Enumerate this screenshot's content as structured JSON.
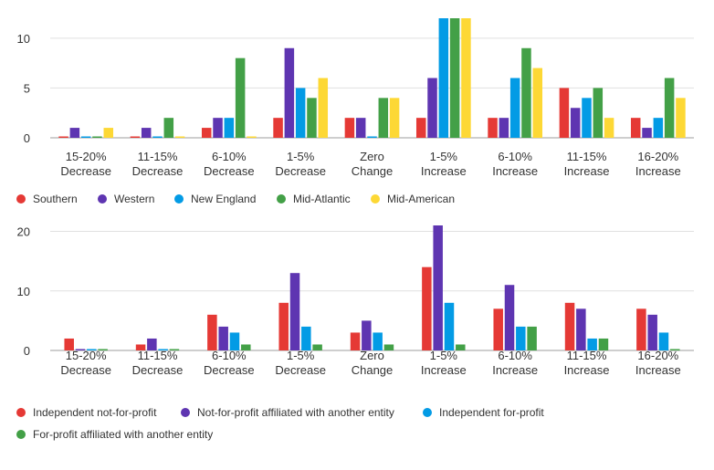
{
  "chart_data": [
    {
      "type": "bar",
      "categories": [
        [
          "15-20%",
          "Decrease"
        ],
        [
          "11-15%",
          "Decrease"
        ],
        [
          "6-10%",
          "Decrease"
        ],
        [
          "1-5%",
          "Decrease"
        ],
        [
          "Zero",
          "Change"
        ],
        [
          "1-5%",
          "Increase"
        ],
        [
          "6-10%",
          "Increase"
        ],
        [
          "11-15%",
          "Increase"
        ],
        [
          "16-20%",
          "Increase"
        ]
      ],
      "yticks": [
        0,
        5,
        10
      ],
      "ylim": [
        0,
        12
      ],
      "grid": true,
      "legend_position": "bottom",
      "series": [
        {
          "name": "Southern",
          "color": "#e53935",
          "values": [
            0,
            0,
            1,
            2,
            2,
            2,
            2,
            5,
            2
          ]
        },
        {
          "name": "Western",
          "color": "#5e35b1",
          "values": [
            1,
            1,
            2,
            9,
            2,
            6,
            2,
            3,
            1
          ]
        },
        {
          "name": "New England",
          "color": "#039be5",
          "values": [
            0,
            0,
            2,
            5,
            0,
            12,
            6,
            4,
            2
          ]
        },
        {
          "name": "Mid-Atlantic",
          "color": "#43a047",
          "values": [
            0,
            2,
            8,
            4,
            4,
            12,
            9,
            5,
            6
          ]
        },
        {
          "name": "Mid-American",
          "color": "#fdd835",
          "values": [
            1,
            0,
            0,
            6,
            4,
            12,
            7,
            2,
            4
          ]
        }
      ]
    },
    {
      "type": "bar",
      "categories": [
        [
          "15-20%",
          "Decrease"
        ],
        [
          "11-15%",
          "Decrease"
        ],
        [
          "6-10%",
          "Decrease"
        ],
        [
          "1-5%",
          "Decrease"
        ],
        [
          "Zero",
          "Change"
        ],
        [
          "1-5%",
          "Increase"
        ],
        [
          "6-10%",
          "Increase"
        ],
        [
          "11-15%",
          "Increase"
        ],
        [
          "16-20%",
          "Increase"
        ]
      ],
      "yticks": [
        0,
        10,
        20
      ],
      "ylim": [
        0,
        21
      ],
      "grid": true,
      "legend_position": "bottom",
      "series": [
        {
          "name": "Independent not-for-profit",
          "color": "#e53935",
          "values": [
            2,
            1,
            6,
            8,
            3,
            14,
            7,
            8,
            7
          ]
        },
        {
          "name": "Not-for-profit affiliated with another entity",
          "color": "#5e35b1",
          "values": [
            0,
            2,
            4,
            13,
            5,
            21,
            11,
            7,
            6
          ]
        },
        {
          "name": "Independent for-profit",
          "color": "#039be5",
          "values": [
            0,
            0,
            3,
            4,
            3,
            8,
            4,
            2,
            3
          ]
        },
        {
          "name": "For-profit affiliated with another entity",
          "color": "#43a047",
          "values": [
            0,
            0,
            1,
            1,
            1,
            1,
            4,
            2,
            0
          ]
        }
      ]
    }
  ]
}
